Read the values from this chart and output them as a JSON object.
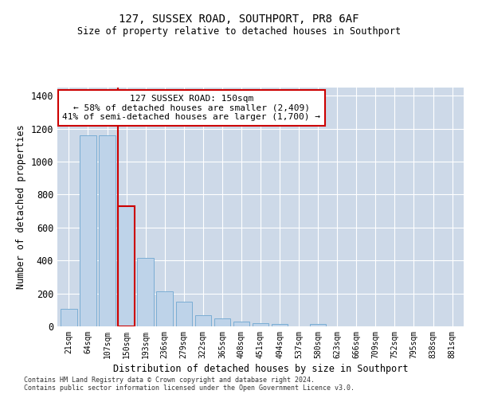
{
  "title": "127, SUSSEX ROAD, SOUTHPORT, PR8 6AF",
  "subtitle": "Size of property relative to detached houses in Southport",
  "xlabel": "Distribution of detached houses by size in Southport",
  "ylabel": "Number of detached properties",
  "footer_line1": "Contains HM Land Registry data © Crown copyright and database right 2024.",
  "footer_line2": "Contains public sector information licensed under the Open Government Licence v3.0.",
  "annotation_line1": "127 SUSSEX ROAD: 150sqm",
  "annotation_line2": "← 58% of detached houses are smaller (2,409)",
  "annotation_line3": "41% of semi-detached houses are larger (1,700) →",
  "categories": [
    "21sqm",
    "64sqm",
    "107sqm",
    "150sqm",
    "193sqm",
    "236sqm",
    "279sqm",
    "322sqm",
    "365sqm",
    "408sqm",
    "451sqm",
    "494sqm",
    "537sqm",
    "580sqm",
    "623sqm",
    "666sqm",
    "709sqm",
    "752sqm",
    "795sqm",
    "838sqm",
    "881sqm"
  ],
  "bar_values": [
    105,
    1160,
    1160,
    730,
    415,
    215,
    150,
    70,
    48,
    30,
    18,
    14,
    0,
    15,
    0,
    0,
    0,
    0,
    0,
    0,
    0
  ],
  "highlight_index": 3,
  "bar_color": "#bed3e9",
  "bar_edge_color": "#7aadd4",
  "highlight_color": "#cc0000",
  "background_color": "#ffffff",
  "grid_color": "#cdd9e8",
  "ylim": [
    0,
    1450
  ],
  "yticks": [
    0,
    200,
    400,
    600,
    800,
    1000,
    1200,
    1400
  ]
}
